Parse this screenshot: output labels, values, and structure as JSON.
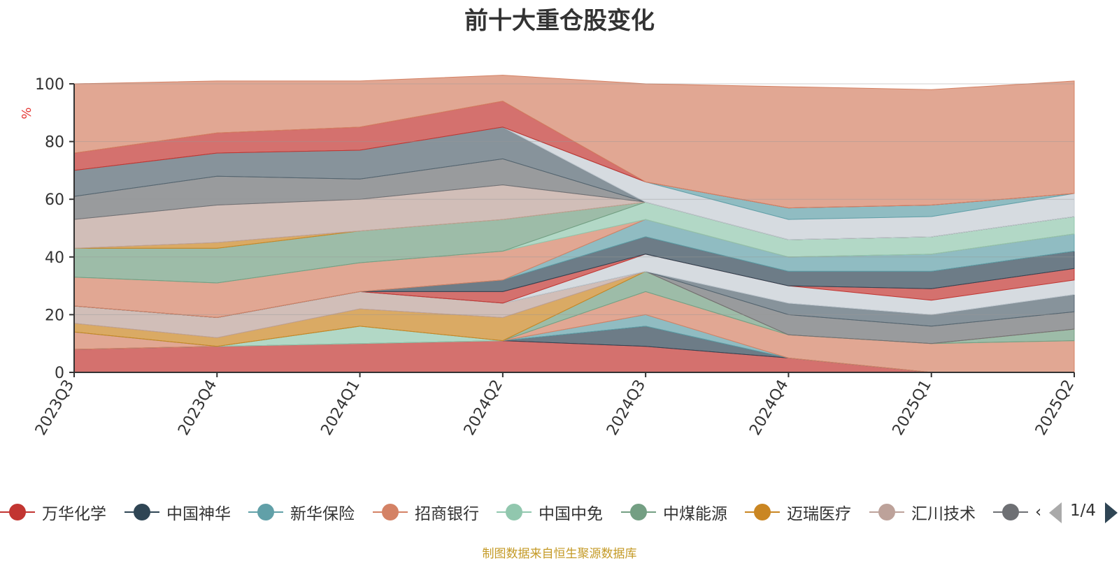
{
  "chart_data": {
    "type": "area",
    "title": "前十大重仓股变化",
    "ylabel": "%",
    "xlabel": "",
    "ylim": [
      0,
      100
    ],
    "yticks": [
      0,
      20,
      40,
      60,
      80,
      100
    ],
    "grid": true,
    "legend_position": "bottom",
    "categories": [
      "2023Q3",
      "2023Q4",
      "2024Q1",
      "2024Q2",
      "2024Q3",
      "2024Q4",
      "2025Q1",
      "2025Q2"
    ],
    "series": [
      {
        "name": "万华化学",
        "color": "#c23531",
        "values": [
          8,
          9,
          10,
          11,
          9,
          5,
          0,
          0
        ]
      },
      {
        "name": "中国神华",
        "color": "#2f4554",
        "values": [
          0,
          0,
          0,
          0,
          7,
          0,
          0,
          0
        ]
      },
      {
        "name": "新华保险",
        "color": "#61a0a8",
        "values": [
          0,
          0,
          0,
          0,
          4,
          0,
          0,
          0
        ]
      },
      {
        "name": "招商银行",
        "color": "#d48265",
        "values": [
          6,
          0,
          0,
          0,
          8,
          8,
          10,
          11
        ]
      },
      {
        "name": "中国中免",
        "color": "#91c7ae",
        "values": [
          0,
          0,
          6,
          0,
          0,
          0,
          0,
          0
        ]
      },
      {
        "name": "中煤能源",
        "color": "#749f83",
        "values": [
          0,
          0,
          0,
          0,
          7,
          0,
          0,
          4
        ]
      },
      {
        "name": "迈瑞医疗",
        "color": "#ca8622",
        "values": [
          3,
          3,
          6,
          8,
          0,
          0,
          0,
          0
        ]
      },
      {
        "name": "汇川技术",
        "color": "#bda29a",
        "values": [
          6,
          7,
          6,
          5,
          0,
          0,
          0,
          0
        ]
      },
      {
        "name": "",
        "color": "#6e7074",
        "values": [
          0,
          0,
          0,
          0,
          0,
          7,
          6,
          6
        ]
      },
      {
        "name": "",
        "color": "#546570",
        "values": [
          0,
          0,
          0,
          0,
          0,
          4,
          4,
          6
        ]
      },
      {
        "name": "",
        "color": "#c4ccd3",
        "values": [
          0,
          0,
          0,
          0,
          6,
          6,
          5,
          5
        ]
      },
      {
        "name": "",
        "color": "#c23531",
        "values": [
          0,
          0,
          0,
          4,
          0,
          0,
          4,
          4
        ]
      },
      {
        "name": "",
        "color": "#2f4554",
        "values": [
          0,
          0,
          0,
          4,
          6,
          5,
          6,
          6
        ]
      },
      {
        "name": "",
        "color": "#61a0a8",
        "values": [
          0,
          0,
          0,
          0,
          6,
          5,
          6,
          6
        ]
      },
      {
        "name": "",
        "color": "#d48265",
        "values": [
          10,
          12,
          10,
          10,
          0,
          0,
          0,
          0
        ]
      },
      {
        "name": "",
        "color": "#91c7ae",
        "values": [
          0,
          0,
          0,
          0,
          6,
          6,
          6,
          6
        ]
      },
      {
        "name": "",
        "color": "#749f83",
        "values": [
          10,
          12,
          11,
          11,
          0,
          0,
          0,
          0
        ]
      },
      {
        "name": "",
        "color": "#ca8622",
        "values": [
          0,
          2,
          0,
          0,
          0,
          0,
          0,
          0
        ]
      },
      {
        "name": "",
        "color": "#bda29a",
        "values": [
          10,
          13,
          11,
          12,
          0,
          0,
          0,
          0
        ]
      },
      {
        "name": "",
        "color": "#6e7074",
        "values": [
          8,
          10,
          7,
          9,
          0,
          0,
          0,
          0
        ]
      },
      {
        "name": "",
        "color": "#546570",
        "values": [
          9,
          8,
          10,
          11,
          0,
          0,
          0,
          0
        ]
      },
      {
        "name": "",
        "color": "#c4ccd3",
        "values": [
          0,
          0,
          0,
          0,
          7,
          7,
          7,
          8
        ]
      },
      {
        "name": "",
        "color": "#61a0a8",
        "values": [
          0,
          0,
          0,
          0,
          0,
          4,
          4,
          0
        ]
      },
      {
        "name": "",
        "color": "#c23531",
        "values": [
          6,
          7,
          8,
          9,
          0,
          0,
          0,
          0
        ]
      },
      {
        "name": "",
        "color": "#d48265",
        "values": [
          24,
          18,
          16,
          9,
          34,
          42,
          40,
          39
        ]
      }
    ]
  },
  "legend": {
    "visible_items": [
      {
        "label": "万华化学",
        "color": "#c23531"
      },
      {
        "label": "中国神华",
        "color": "#2f4554"
      },
      {
        "label": "新华保险",
        "color": "#61a0a8"
      },
      {
        "label": "招商银行",
        "color": "#d48265"
      },
      {
        "label": "中国中免",
        "color": "#91c7ae"
      },
      {
        "label": "中煤能源",
        "color": "#749f83"
      },
      {
        "label": "迈瑞医疗",
        "color": "#ca8622"
      },
      {
        "label": "汇川技术",
        "color": "#bda29a"
      },
      {
        "label": "‹",
        "color": "#6e7074"
      }
    ],
    "page_indicator": "1/4"
  },
  "source_note": "制图数据来自恒生聚源数据库"
}
